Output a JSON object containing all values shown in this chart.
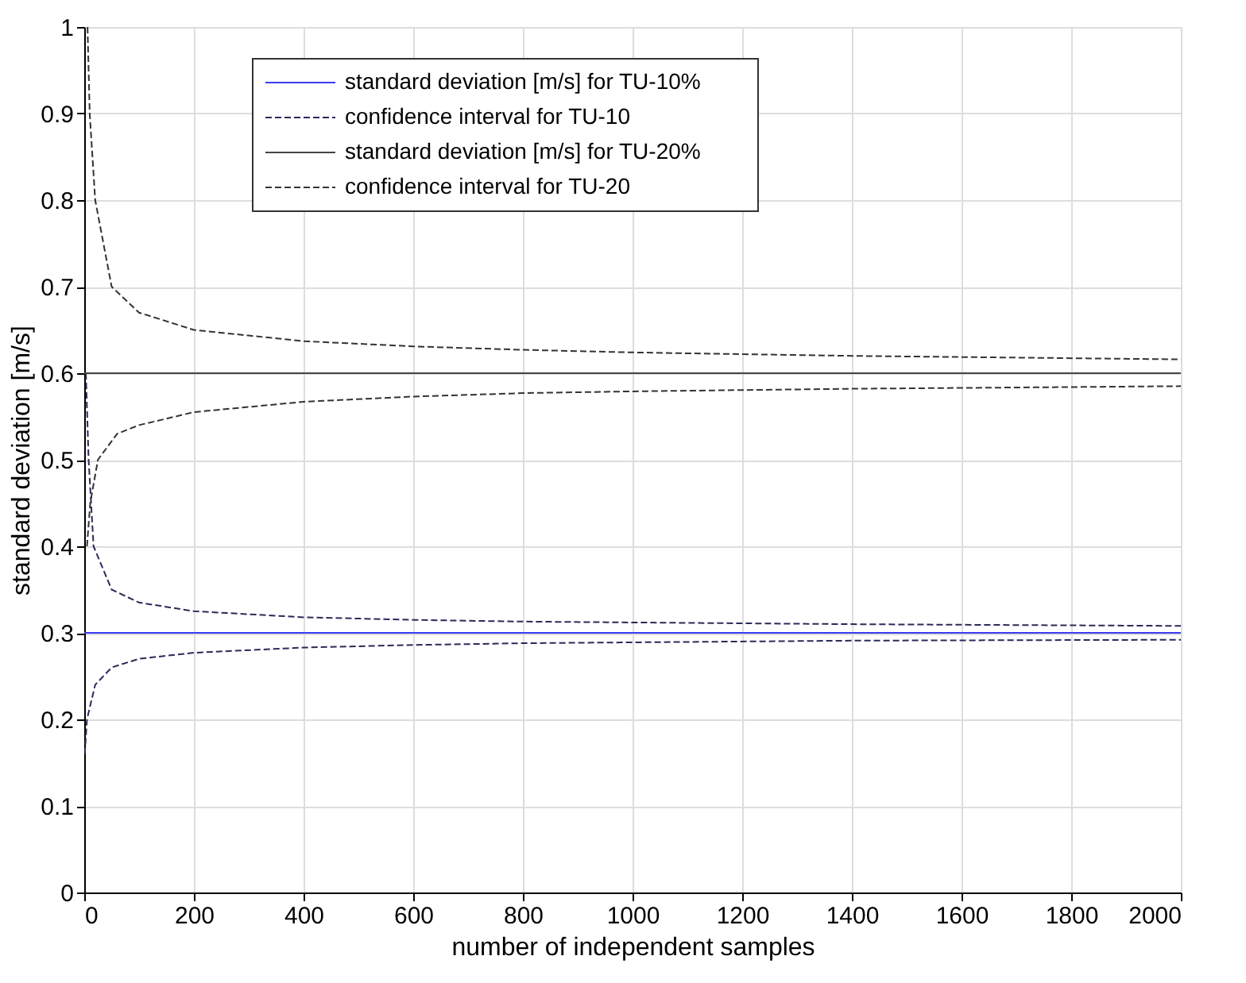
{
  "chart_data": {
    "type": "line",
    "xlabel": "number of independent samples",
    "ylabel": "standard deviation  [m/s]",
    "xlim": [
      0,
      2000
    ],
    "ylim": [
      0,
      1
    ],
    "xticks": [
      0,
      200,
      400,
      600,
      800,
      1000,
      1200,
      1400,
      1600,
      1800,
      2000
    ],
    "yticks": [
      0,
      0.1,
      0.2,
      0.3,
      0.4,
      0.5,
      0.6,
      0.7,
      0.8,
      0.9,
      1
    ],
    "grid": true,
    "legend": "top",
    "marker": "none",
    "series": [
      {
        "name": "standard deviation [m/s] for TU-10%",
        "color": "#3b3bf0",
        "line_style": "solid",
        "x": [
          0,
          2000
        ],
        "values": [
          0.3,
          0.3
        ]
      },
      {
        "name": "confidence interval for TU-10",
        "color": "#2a2a5a",
        "line_style": "dashed",
        "x": [
          3,
          8,
          17,
          50,
          100,
          200,
          400,
          600,
          800,
          1000,
          1400,
          2000
        ],
        "values": [
          0.6,
          0.5,
          0.4,
          0.35,
          0.335,
          0.325,
          0.318,
          0.315,
          0.313,
          0.312,
          0.31,
          0.308
        ]
      },
      {
        "color": "#2a2a5a",
        "line_style": "dashed",
        "x": [
          1,
          5,
          20,
          50,
          100,
          200,
          400,
          600,
          800,
          1000,
          1400,
          2000
        ],
        "values": [
          0.16,
          0.2,
          0.24,
          0.26,
          0.27,
          0.277,
          0.283,
          0.286,
          0.288,
          0.289,
          0.291,
          0.292
        ]
      },
      {
        "name": "standard deviation [m/s] for TU-20%",
        "color": "#444444",
        "line_style": "solid",
        "x": [
          0,
          2000
        ],
        "values": [
          0.6,
          0.6
        ]
      },
      {
        "name": "confidence interval for TU-20",
        "color": "#333333",
        "line_style": "dashed",
        "x": [
          6,
          10,
          20,
          50,
          100,
          200,
          400,
          600,
          800,
          1000,
          1400,
          2000
        ],
        "values": [
          1.0,
          0.9,
          0.8,
          0.7,
          0.67,
          0.65,
          0.637,
          0.631,
          0.627,
          0.624,
          0.62,
          0.616
        ]
      },
      {
        "color": "#333333",
        "line_style": "dashed",
        "x": [
          5,
          11,
          25,
          60,
          100,
          200,
          400,
          600,
          800,
          1000,
          1400,
          2000
        ],
        "values": [
          0.4,
          0.45,
          0.5,
          0.53,
          0.54,
          0.555,
          0.567,
          0.573,
          0.577,
          0.579,
          0.582,
          0.585
        ]
      }
    ]
  }
}
